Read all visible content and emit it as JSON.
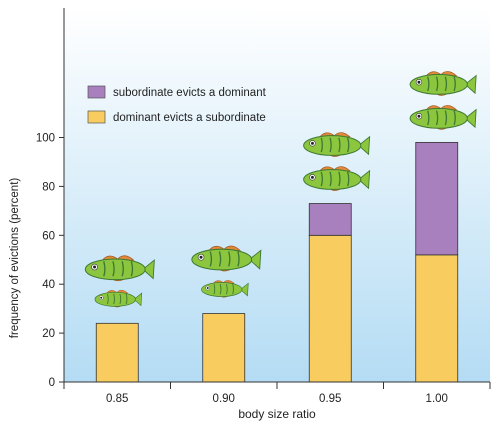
{
  "chart_data": {
    "type": "bar",
    "stacked": true,
    "categories": [
      "0.85",
      "0.90",
      "0.95",
      "1.00"
    ],
    "series": [
      {
        "name": "dominant evicts a subordinate",
        "color": "#f9cc60",
        "values": [
          24,
          28,
          60,
          52
        ]
      },
      {
        "name": "subordinate evicts a dominant",
        "color": "#a880bd",
        "values": [
          0,
          0,
          13,
          46
        ]
      }
    ],
    "xlabel": "body size ratio",
    "ylabel": "frequency of evictions (percent)",
    "ylim": [
      0,
      100
    ],
    "yticks": [
      0,
      20,
      40,
      60,
      80,
      100
    ],
    "legend": "top-left",
    "fish_icons": {
      "icon": "goby-fish-icon",
      "body_color": "#8cc63f",
      "stripe_color": "#3f7a32",
      "fin_color": "#e0893a",
      "pairs": [
        {
          "category": "0.85",
          "dominant_larger": true
        },
        {
          "category": "0.90",
          "dominant_larger": true
        },
        {
          "category": "0.95",
          "dominant_larger": false
        },
        {
          "category": "1.00",
          "dominant_larger": false
        }
      ]
    },
    "background_gradient": [
      "#ffffff",
      "#b4dcf4"
    ]
  }
}
